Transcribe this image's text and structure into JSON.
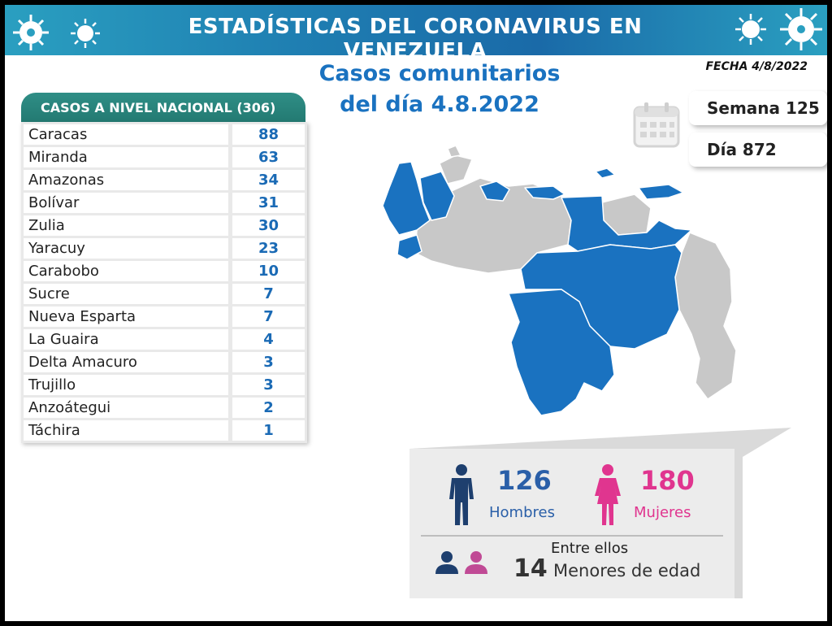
{
  "banner": {
    "title": "ESTADÍSTICAS DEL CORONAVIRUS EN VENEZUELA"
  },
  "fecha": "FECHA 4/8/2022",
  "headline": {
    "line1": "Casos comunitarios",
    "line2": "del día 4.8.2022"
  },
  "semana": "Semana 125",
  "dia": "Día 872",
  "table": {
    "header": "CASOS A NIVEL NACIONAL  (306)",
    "rows": [
      {
        "name": "Caracas",
        "value": "88"
      },
      {
        "name": "Miranda",
        "value": "63"
      },
      {
        "name": "Amazonas",
        "value": "34"
      },
      {
        "name": "Bolívar",
        "value": "31"
      },
      {
        "name": "Zulia",
        "value": "30"
      },
      {
        "name": "Yaracuy",
        "value": "23"
      },
      {
        "name": "Carabobo",
        "value": "10"
      },
      {
        "name": "Sucre",
        "value": "7"
      },
      {
        "name": "Nueva Esparta",
        "value": "7"
      },
      {
        "name": "La Guaira",
        "value": "4"
      },
      {
        "name": "Delta Amacuro",
        "value": "3"
      },
      {
        "name": "Trujillo",
        "value": "3"
      },
      {
        "name": "Anzoátegui",
        "value": "2"
      },
      {
        "name": "Táchira",
        "value": "1"
      }
    ]
  },
  "stats": {
    "hombres_num": "126",
    "hombres_label": "Hombres",
    "mujeres_num": "180",
    "mujeres_label": "Mujeres",
    "entre": "Entre ellos",
    "menores_num": "14",
    "menores_label": "Menores de edad"
  },
  "colors": {
    "blue": "#1a72c0",
    "navy": "#1e3f6e",
    "pink": "#e0358f",
    "gray": "#c8c8c8"
  }
}
